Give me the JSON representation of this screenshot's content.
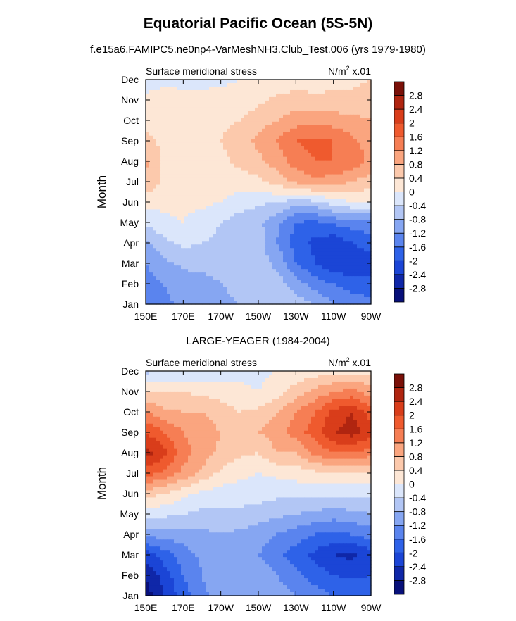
{
  "figure": {
    "title": "Equatorial Pacific Ocean (5S-5N)",
    "subtitle": "f.e15a6.FAMIPC5.ne0np4-VarMeshNH3.Club_Test.006 (yrs 1979-1980)"
  },
  "colors": {
    "palette": [
      "#08107a",
      "#0f27a8",
      "#1b45d6",
      "#2e62e8",
      "#5a84ee",
      "#86a6f2",
      "#b2c6f5",
      "#dbe6fb",
      "#fde7d6",
      "#fcc9ac",
      "#faa57f",
      "#f67e54",
      "#ef5a2e",
      "#d93d1a",
      "#b02510",
      "#7a1008"
    ]
  },
  "chart_data": [
    {
      "type": "heatmap",
      "panel_title": "",
      "left_label": "Surface meridional stress",
      "right_label": "N/m",
      "right_label_sup": "2",
      "right_label_suffix": " x.01",
      "ylabel": "Month",
      "xticks": [
        "150E",
        "170E",
        "170W",
        "150W",
        "130W",
        "110W",
        "90W"
      ],
      "yticks": [
        "Jan",
        "Feb",
        "Mar",
        "Apr",
        "May",
        "Jun",
        "Jul",
        "Aug",
        "Sep",
        "Oct",
        "Nov",
        "Dec"
      ],
      "colorbar_levels": [
        "-2.8",
        "-2.4",
        "-2",
        "-1.6",
        "-1.2",
        "-0.8",
        "-0.4",
        "0",
        "0.4",
        "0.8",
        "1.2",
        "1.6",
        "2",
        "2.4",
        "2.8"
      ],
      "lon_columns": [
        "150E",
        "160E",
        "170E",
        "180",
        "170W",
        "160W",
        "150W",
        "140W",
        "130W",
        "120W",
        "110W",
        "100W",
        "90W"
      ],
      "values": [
        [
          -1.3,
          -1.3,
          -1.1,
          -1.0,
          -0.9,
          -0.8,
          -0.5,
          -0.4,
          -0.6,
          -0.8,
          -1.2,
          -1.4,
          -1.4
        ],
        [
          -1.4,
          -1.2,
          -1.0,
          -0.9,
          -0.8,
          -0.7,
          -0.6,
          -0.6,
          -1.0,
          -1.4,
          -1.6,
          -1.8,
          -1.9
        ],
        [
          -1.2,
          -0.9,
          -0.7,
          -0.7,
          -0.7,
          -0.7,
          -0.6,
          -0.9,
          -1.6,
          -2.0,
          -2.3,
          -2.4,
          -2.2
        ],
        [
          -0.9,
          -0.5,
          -0.3,
          -0.4,
          -0.5,
          -0.6,
          -0.6,
          -1.2,
          -1.8,
          -2.1,
          -2.3,
          -2.0,
          -1.8
        ],
        [
          -0.3,
          -0.1,
          0.0,
          -0.2,
          -0.4,
          -0.6,
          -0.7,
          -1.1,
          -1.6,
          -1.7,
          -1.5,
          -1.4,
          -1.3
        ],
        [
          0.2,
          0.1,
          0.1,
          0.1,
          0.0,
          -0.2,
          -0.3,
          -0.4,
          -0.6,
          -0.5,
          -0.2,
          0.0,
          0.0
        ],
        [
          0.7,
          0.3,
          0.2,
          0.2,
          0.2,
          0.2,
          0.3,
          0.6,
          0.9,
          1.1,
          1.0,
          0.8,
          0.6
        ],
        [
          0.9,
          0.3,
          0.2,
          0.2,
          0.3,
          0.5,
          0.7,
          1.0,
          1.4,
          1.6,
          1.6,
          1.5,
          1.1
        ],
        [
          0.5,
          0.3,
          0.2,
          0.3,
          0.4,
          0.6,
          0.9,
          1.2,
          1.6,
          1.7,
          1.6,
          1.3,
          1.0
        ],
        [
          0.3,
          0.2,
          0.2,
          0.2,
          0.3,
          0.4,
          0.6,
          0.8,
          1.0,
          1.1,
          1.0,
          0.9,
          0.8
        ],
        [
          0.1,
          0.2,
          0.1,
          0.1,
          0.2,
          0.2,
          0.3,
          0.5,
          0.6,
          0.5,
          0.5,
          0.5,
          0.6
        ],
        [
          -0.2,
          -0.1,
          -0.1,
          -0.1,
          -0.1,
          0.0,
          0.0,
          0.1,
          0.2,
          0.2,
          0.3,
          0.3,
          0.4
        ]
      ],
      "x_range": [
        "150E",
        "90W"
      ],
      "y_range": [
        "Jan",
        "Dec"
      ],
      "grid": false,
      "colorbar": "right"
    },
    {
      "type": "heatmap",
      "panel_title": "LARGE-YEAGER (1984-2004)",
      "left_label": "Surface meridional stress",
      "right_label": "N/m",
      "right_label_sup": "2",
      "right_label_suffix": " x.01",
      "ylabel": "Month",
      "xticks": [
        "150E",
        "170E",
        "170W",
        "150W",
        "130W",
        "110W",
        "90W"
      ],
      "yticks": [
        "Jan",
        "Feb",
        "Mar",
        "Apr",
        "May",
        "Jun",
        "Jul",
        "Aug",
        "Sep",
        "Oct",
        "Nov",
        "Dec"
      ],
      "colorbar_levels": [
        "-2.8",
        "-2.4",
        "-2",
        "-1.6",
        "-1.2",
        "-0.8",
        "-0.4",
        "0",
        "0.4",
        "0.8",
        "1.2",
        "1.6",
        "2",
        "2.4",
        "2.8"
      ],
      "lon_columns": [
        "150E",
        "160E",
        "170E",
        "180",
        "170W",
        "160W",
        "150W",
        "140W",
        "130W",
        "120W",
        "110W",
        "100W",
        "90W"
      ],
      "values": [
        [
          -3.0,
          -2.4,
          -1.8,
          -1.3,
          -1.0,
          -0.9,
          -0.8,
          -1.0,
          -1.2,
          -1.4,
          -1.6,
          -1.6,
          -1.6
        ],
        [
          -2.8,
          -2.2,
          -1.6,
          -1.2,
          -0.9,
          -0.8,
          -0.9,
          -1.2,
          -1.5,
          -1.8,
          -2.0,
          -2.1,
          -2.0
        ],
        [
          -2.2,
          -1.8,
          -1.4,
          -1.1,
          -0.9,
          -1.0,
          -1.2,
          -1.5,
          -1.8,
          -2.1,
          -2.4,
          -2.5,
          -2.2
        ],
        [
          -1.1,
          -1.0,
          -1.0,
          -0.9,
          -0.8,
          -0.9,
          -1.0,
          -1.2,
          -1.4,
          -1.6,
          -1.7,
          -1.6,
          -1.4
        ],
        [
          -0.2,
          -0.3,
          -0.4,
          -0.5,
          -0.5,
          -0.5,
          -0.6,
          -0.7,
          -0.8,
          -0.9,
          -1.0,
          -0.9,
          -0.8
        ],
        [
          0.6,
          0.4,
          0.1,
          -0.1,
          -0.2,
          -0.2,
          -0.2,
          -0.3,
          -0.3,
          -0.3,
          -0.3,
          -0.3,
          -0.3
        ],
        [
          1.8,
          1.5,
          1.1,
          0.7,
          0.3,
          0.1,
          0.0,
          0.1,
          0.2,
          0.3,
          0.4,
          0.4,
          0.3
        ],
        [
          2.6,
          2.1,
          1.4,
          1.0,
          0.7,
          0.5,
          0.4,
          0.8,
          0.8,
          1.3,
          1.6,
          1.6,
          1.4
        ],
        [
          2.0,
          1.6,
          1.2,
          1.0,
          0.8,
          0.6,
          0.8,
          1.0,
          1.4,
          1.8,
          2.4,
          2.6,
          2.2
        ],
        [
          1.2,
          0.9,
          0.8,
          0.8,
          0.6,
          0.4,
          0.5,
          0.8,
          1.2,
          1.6,
          2.1,
          2.4,
          1.8
        ],
        [
          0.4,
          0.4,
          0.4,
          0.3,
          0.2,
          0.1,
          0.0,
          0.2,
          0.6,
          0.9,
          1.2,
          1.3,
          1.0
        ],
        [
          -0.5,
          -0.4,
          -0.4,
          -0.3,
          -0.2,
          -0.1,
          -0.1,
          0.0,
          0.1,
          0.2,
          0.2,
          0.3,
          0.3
        ]
      ],
      "x_range": [
        "150E",
        "90W"
      ],
      "y_range": [
        "Jan",
        "Dec"
      ],
      "grid": false,
      "colorbar": "right"
    }
  ]
}
